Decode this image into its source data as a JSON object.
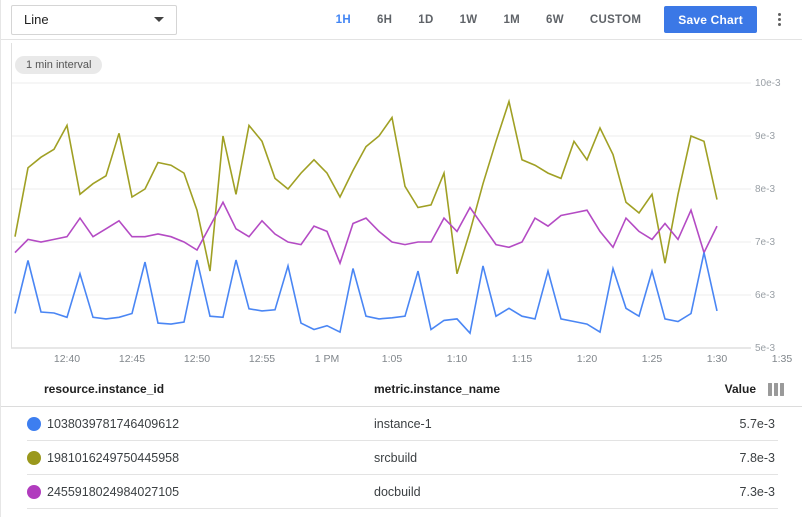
{
  "toolbar": {
    "chart_type_value": "Line",
    "time_ranges": [
      "1H",
      "6H",
      "1D",
      "1W",
      "1M",
      "6W",
      "CUSTOM"
    ],
    "active_range": "1H",
    "save_label": "Save Chart"
  },
  "chart": {
    "interval_badge": "1 min interval"
  },
  "chart_data": {
    "type": "line",
    "x_tick_labels": [
      "12:40",
      "12:45",
      "12:50",
      "12:55",
      "1 PM",
      "1:05",
      "1:10",
      "1:15",
      "1:20",
      "1:25",
      "1:30",
      "1:35"
    ],
    "y_tick_labels": [
      "10e-3",
      "9e-3",
      "8e-3",
      "7e-3",
      "6e-3",
      "5e-3"
    ],
    "y_range_e3": [
      5,
      10
    ],
    "interval": "1 min",
    "grid": "horizontal",
    "series": [
      {
        "name": "srcbuild",
        "color": "#a0a024",
        "values_e3": [
          7.1,
          8.4,
          8.6,
          8.75,
          9.2,
          7.9,
          8.1,
          8.25,
          9.05,
          7.85,
          8.0,
          8.5,
          8.45,
          8.3,
          7.6,
          6.45,
          9.0,
          7.9,
          9.2,
          8.9,
          8.2,
          8.0,
          8.3,
          8.55,
          8.3,
          7.85,
          8.35,
          8.8,
          9.0,
          9.35,
          8.05,
          7.65,
          7.7,
          8.3,
          6.4,
          7.2,
          8.1,
          8.9,
          9.65,
          8.55,
          8.45,
          8.3,
          8.2,
          8.9,
          8.55,
          9.15,
          8.65,
          7.75,
          7.55,
          7.9,
          6.6,
          7.9,
          9.0,
          8.9,
          7.8
        ]
      },
      {
        "name": "docbuild",
        "color": "#b44bc4",
        "values_e3": [
          6.8,
          7.05,
          7.0,
          7.05,
          7.1,
          7.45,
          7.1,
          7.25,
          7.4,
          7.1,
          7.1,
          7.15,
          7.1,
          7.0,
          6.85,
          7.3,
          7.75,
          7.25,
          7.1,
          7.4,
          7.15,
          7.0,
          6.95,
          7.3,
          7.2,
          6.6,
          7.35,
          7.45,
          7.2,
          7.0,
          6.95,
          7.0,
          7.0,
          7.45,
          7.2,
          7.65,
          7.3,
          6.95,
          6.9,
          7.0,
          7.45,
          7.3,
          7.5,
          7.55,
          7.6,
          7.2,
          6.9,
          7.45,
          7.2,
          7.05,
          7.35,
          7.05,
          7.6,
          6.8,
          7.3
        ]
      },
      {
        "name": "instance-1",
        "color": "#4a86f4",
        "values_e3": [
          5.65,
          6.65,
          5.68,
          5.66,
          5.58,
          6.4,
          5.58,
          5.55,
          5.58,
          5.65,
          6.62,
          5.47,
          5.45,
          5.49,
          6.66,
          5.6,
          5.58,
          6.66,
          5.74,
          5.7,
          5.72,
          6.55,
          5.47,
          5.35,
          5.42,
          5.3,
          6.5,
          5.6,
          5.55,
          5.57,
          5.6,
          6.45,
          5.35,
          5.52,
          5.55,
          5.28,
          6.55,
          5.6,
          5.75,
          5.6,
          5.55,
          6.45,
          5.55,
          5.5,
          5.45,
          5.3,
          6.5,
          5.75,
          5.6,
          6.45,
          5.55,
          5.5,
          5.65,
          6.8,
          5.7
        ]
      }
    ]
  },
  "table": {
    "columns": [
      "resource.instance_id",
      "metric.instance_name",
      "Value"
    ],
    "rows": [
      {
        "color": "#3d7ef0",
        "instance_id": "1038039781746409612",
        "instance_name": "instance-1",
        "value": "5.7e-3"
      },
      {
        "color": "#9a981c",
        "instance_id": "1981016249750445958",
        "instance_name": "srcbuild",
        "value": "7.8e-3"
      },
      {
        "color": "#b13cbe",
        "instance_id": "2455918024984027105",
        "instance_name": "docbuild",
        "value": "7.3e-3"
      }
    ]
  }
}
